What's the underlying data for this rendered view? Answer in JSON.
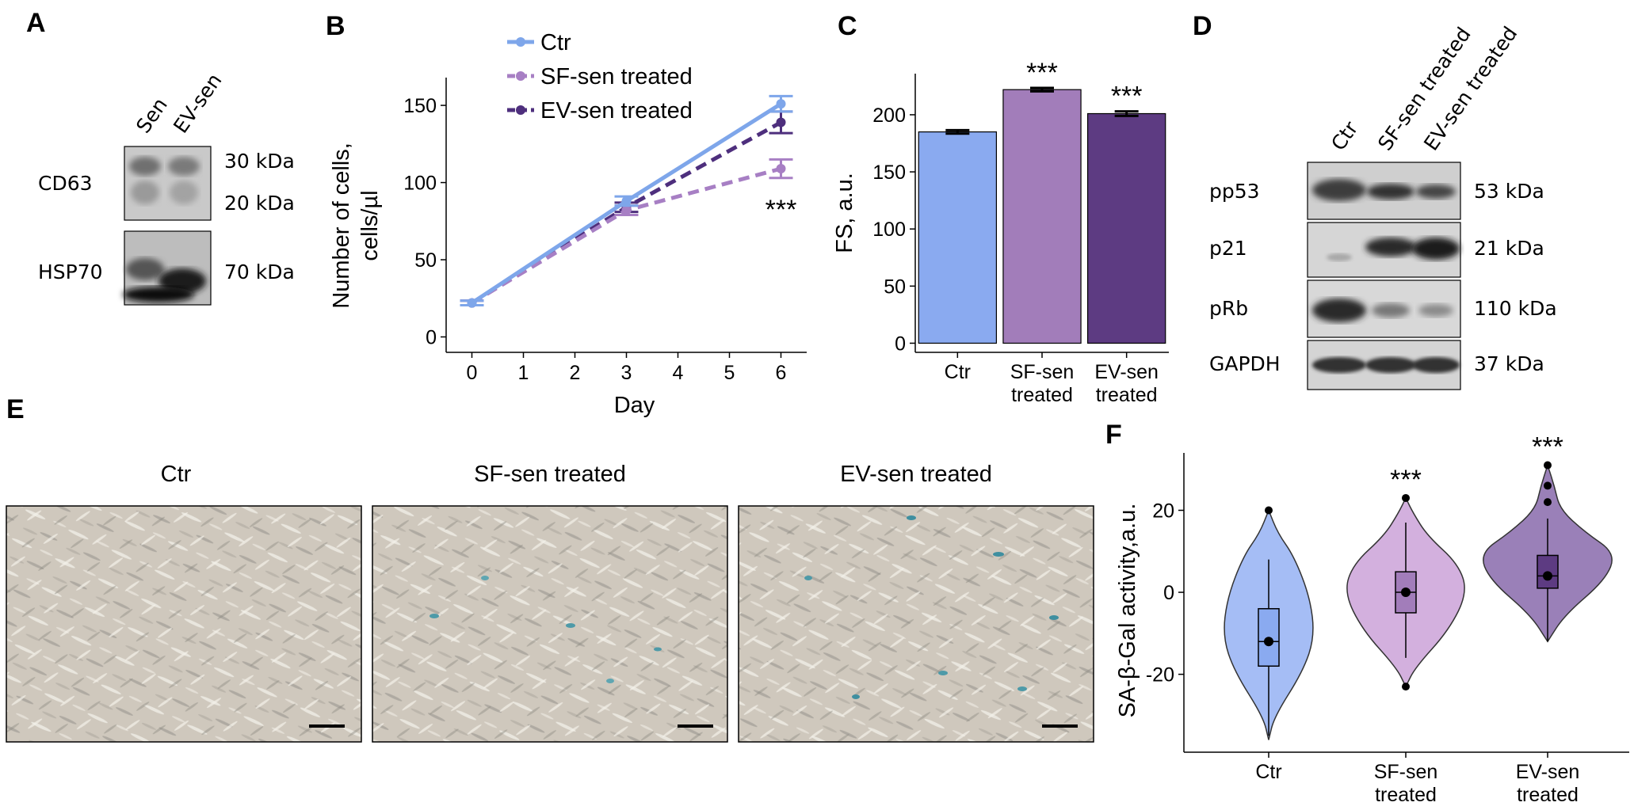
{
  "panels": {
    "A": {
      "letter": "A",
      "lanes": [
        "Sen",
        "EV-sen"
      ],
      "blots": [
        {
          "name": "CD63",
          "markers": [
            "30 kDa",
            "20 kDa"
          ]
        },
        {
          "name": "HSP70",
          "markers": [
            "70 kDa"
          ]
        }
      ]
    },
    "B": {
      "letter": "B"
    },
    "C": {
      "letter": "C"
    },
    "D": {
      "letter": "D",
      "lanes": [
        "Ctr",
        "SF-sen treated",
        "EV-sen treated"
      ],
      "blots": [
        {
          "name": "pp53",
          "marker": "53 kDa"
        },
        {
          "name": "p21",
          "marker": "21 kDa"
        },
        {
          "name": "pRb",
          "marker": "110 kDa"
        },
        {
          "name": "GAPDH",
          "marker": "37 kDa"
        }
      ]
    },
    "E": {
      "letter": "E",
      "images": [
        "Ctr",
        "SF-sen treated",
        "EV-sen treated"
      ]
    },
    "F": {
      "letter": "F"
    }
  },
  "chart_data": [
    {
      "id": "B",
      "type": "line",
      "xlabel": "Day",
      "ylabel": "Number of cells, cells/µl",
      "x_ticks": [
        0,
        1,
        2,
        3,
        4,
        5,
        6
      ],
      "y_ticks": [
        0,
        50,
        100,
        150
      ],
      "xlim": [
        -0.5,
        6.5
      ],
      "ylim": [
        -10,
        168
      ],
      "legend_position": "top",
      "x": [
        0,
        3,
        6
      ],
      "series": [
        {
          "name": "Ctr",
          "values": [
            22,
            88,
            151
          ],
          "errors": [
            1.5,
            3,
            5
          ],
          "color": "#7ea6ea",
          "dash": "solid"
        },
        {
          "name": "SF-sen treated",
          "values": [
            22,
            82,
            109
          ],
          "errors": [
            1.5,
            3,
            6
          ],
          "color": "#a77fc4",
          "dash": "dashed"
        },
        {
          "name": "EV-sen treated",
          "values": [
            22,
            84,
            139
          ],
          "errors": [
            1.5,
            3,
            7
          ],
          "color": "#4e2f7d",
          "dash": "dashed"
        }
      ],
      "annotation": "***",
      "grid": false
    },
    {
      "id": "C",
      "type": "bar",
      "ylabel": "FS, a.u.",
      "categories": [
        "Ctr",
        "SF-sen treated",
        "EV-sen treated"
      ],
      "category_lines": [
        [
          "Ctr"
        ],
        [
          "SF-sen",
          "treated"
        ],
        [
          "EV-sen",
          "treated"
        ]
      ],
      "values": [
        185,
        222,
        201
      ],
      "errors": [
        1.5,
        1.5,
        2
      ],
      "colors": [
        "#8aaaf0",
        "#a27dba",
        "#5d3b82"
      ],
      "y_ticks": [
        0,
        50,
        100,
        150,
        200
      ],
      "ylim": [
        -8,
        236
      ],
      "annotations": [
        "",
        "***",
        "***"
      ],
      "grid": false
    },
    {
      "id": "F",
      "type": "violin",
      "ylabel": "SA-β-Gal activity,a.u.",
      "categories": [
        "Ctr",
        "SF-sen treated",
        "EV-sen treated"
      ],
      "category_lines": [
        [
          "Ctr"
        ],
        [
          "SF-sen",
          "treated"
        ],
        [
          "EV-sen",
          "treated"
        ]
      ],
      "colors": [
        "#a5bdf5",
        "#d3b0de",
        "#9a80b8"
      ],
      "box_colors": [
        "#8aaaf0",
        "#a27dba",
        "#5d3b82"
      ],
      "y_ticks": [
        -20,
        0,
        20
      ],
      "ylim": [
        -39,
        34
      ],
      "groups": [
        {
          "median": -12,
          "q1": -18,
          "q3": -4,
          "whisker_low": -35,
          "whisker_high": 8,
          "min": -36,
          "max": 20,
          "outliers": [
            20
          ]
        },
        {
          "median": 0,
          "q1": -5,
          "q3": 5,
          "whisker_low": -16,
          "whisker_high": 17,
          "min": -23,
          "max": 23,
          "outliers": [
            23,
            -23
          ]
        },
        {
          "median": 4,
          "q1": 1,
          "q3": 9,
          "whisker_low": -12,
          "whisker_high": 18,
          "min": -12,
          "max": 31,
          "outliers": [
            31,
            26,
            22
          ]
        }
      ],
      "annotations": [
        "",
        "***",
        "***"
      ],
      "grid": false
    }
  ]
}
